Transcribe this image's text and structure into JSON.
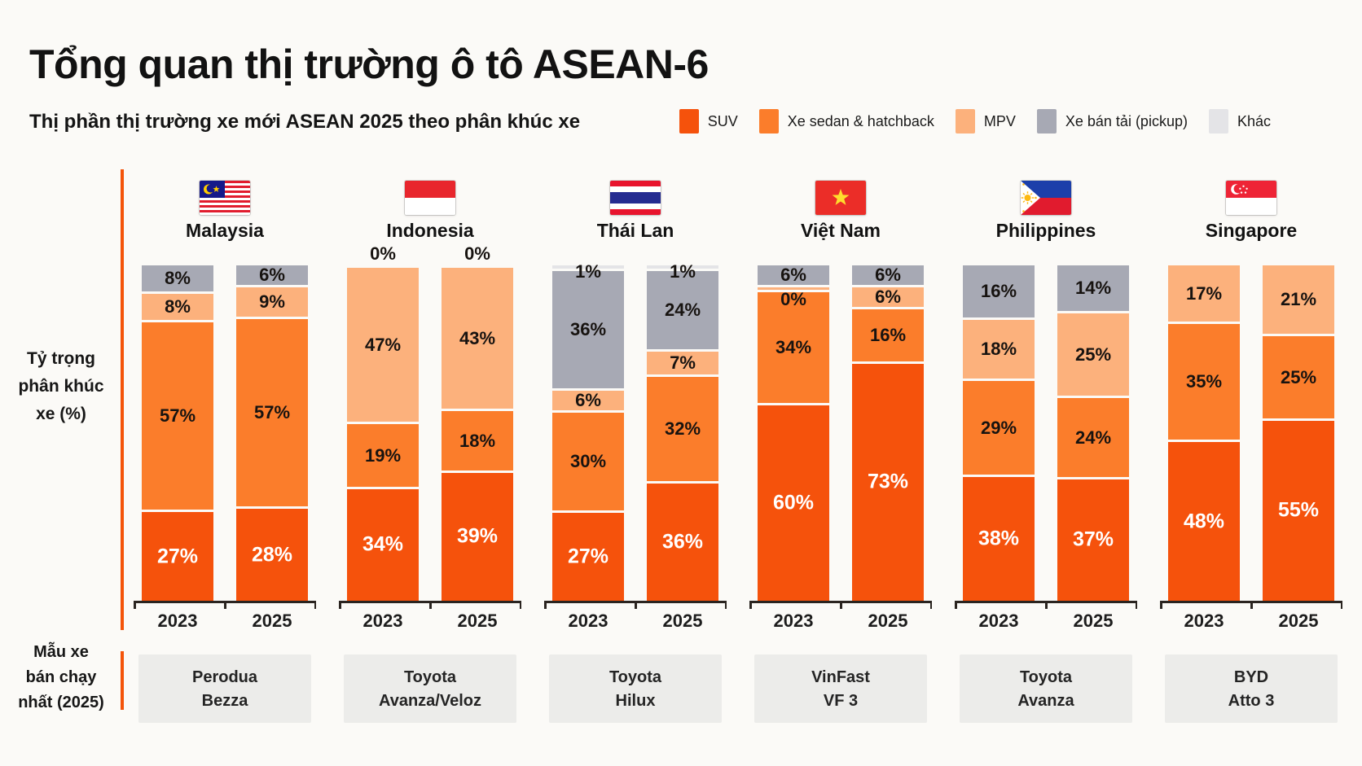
{
  "title": "Tổng quan thị trường ô tô ASEAN-6",
  "subtitle": "Thị phần thị trường xe mới ASEAN 2025 theo phân khúc xe",
  "row_labels": {
    "segments": "Tỷ trọng\nphân khúc\nxe (%)",
    "models": "Mẫu xe\nbán chạy\nnhất (2025)"
  },
  "years": [
    "2023",
    "2025"
  ],
  "legend": [
    {
      "label": "SUV",
      "color": "#F5520C"
    },
    {
      "label": "Xe sedan & hatchback",
      "color": "#FB7D2B"
    },
    {
      "label": "MPV",
      "color": "#FCB17C"
    },
    {
      "label": "Xe bán tải (pickup)",
      "color": "#A7A9B4"
    },
    {
      "label": "Khác",
      "color": "#E4E4E7"
    }
  ],
  "colors": {
    "accent": "#F4540A",
    "axis": "#2a2420",
    "model_box_bg": "#ECECEA",
    "background": "#FBFAF7"
  },
  "chart_data": {
    "type": "bar",
    "stacked": true,
    "unit": "%",
    "ymax": 100,
    "grid": false,
    "legend_position": "top-right",
    "segment_keys": [
      "SUV",
      "Xe sedan & hatchback",
      "MPV",
      "Xe bán tải (pickup)",
      "Khác"
    ],
    "note": "values arrays follow segment_keys order, bottom of stack first; null = segment not present",
    "countries": [
      {
        "name": "Malaysia",
        "flag": "MY",
        "top_model": [
          "Perodua",
          "Bezza"
        ],
        "bars": [
          {
            "year": "2023",
            "values": [
              27,
              57,
              8,
              8,
              null
            ]
          },
          {
            "year": "2025",
            "values": [
              28,
              57,
              9,
              6,
              null
            ]
          }
        ]
      },
      {
        "name": "Indonesia",
        "flag": "ID",
        "top_model": [
          "Toyota",
          "Avanza/Veloz"
        ],
        "bars": [
          {
            "year": "2023",
            "values": [
              34,
              19,
              47,
              0,
              null
            ]
          },
          {
            "year": "2025",
            "values": [
              39,
              18,
              43,
              0,
              null
            ]
          }
        ]
      },
      {
        "name": "Thái Lan",
        "flag": "TH",
        "top_model": [
          "Toyota",
          "Hilux"
        ],
        "bars": [
          {
            "year": "2023",
            "values": [
              27,
              30,
              6,
              36,
              1
            ]
          },
          {
            "year": "2025",
            "values": [
              36,
              32,
              7,
              24,
              1
            ]
          }
        ]
      },
      {
        "name": "Việt Nam",
        "flag": "VN",
        "top_model": [
          "VinFast",
          "VF 3"
        ],
        "bars": [
          {
            "year": "2023",
            "values": [
              60,
              34,
              0,
              6,
              null
            ]
          },
          {
            "year": "2025",
            "values": [
              73,
              16,
              6,
              6,
              null
            ]
          }
        ]
      },
      {
        "name": "Philippines",
        "flag": "PH",
        "top_model": [
          "Toyota",
          "Avanza"
        ],
        "bars": [
          {
            "year": "2023",
            "values": [
              38,
              29,
              18,
              16,
              null
            ]
          },
          {
            "year": "2025",
            "values": [
              37,
              24,
              25,
              14,
              null
            ]
          }
        ]
      },
      {
        "name": "Singapore",
        "flag": "SG",
        "top_model": [
          "BYD",
          "Atto 3"
        ],
        "bars": [
          {
            "year": "2023",
            "values": [
              48,
              35,
              17,
              null,
              null
            ]
          },
          {
            "year": "2025",
            "values": [
              55,
              25,
              21,
              null,
              null
            ]
          }
        ]
      }
    ]
  }
}
